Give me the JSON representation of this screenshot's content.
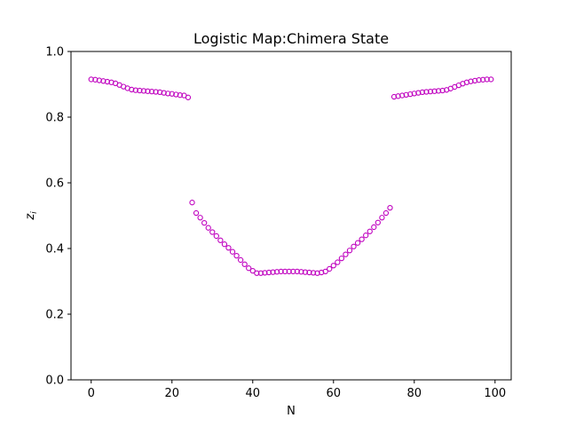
{
  "chart_data": {
    "type": "scatter",
    "title": "Logistic Map:Chimera State",
    "xlabel": "N",
    "ylabel_main": "z",
    "ylabel_sub": "i",
    "xlim": [
      -5,
      104
    ],
    "ylim": [
      0.0,
      1.0
    ],
    "xticks": [
      0,
      20,
      40,
      60,
      80,
      100
    ],
    "xtick_labels": [
      "0",
      "20",
      "40",
      "60",
      "80",
      "100"
    ],
    "yticks": [
      0.0,
      0.2,
      0.4,
      0.6,
      0.8,
      1.0
    ],
    "ytick_labels": [
      "0.0",
      "0.2",
      "0.4",
      "0.6",
      "0.8",
      "1.0"
    ],
    "grid": false,
    "marker": "hollow-circle",
    "color": "#bf00bf",
    "x": [
      0,
      1,
      2,
      3,
      4,
      5,
      6,
      7,
      8,
      9,
      10,
      11,
      12,
      13,
      14,
      15,
      16,
      17,
      18,
      19,
      20,
      21,
      22,
      23,
      24,
      25,
      26,
      27,
      28,
      29,
      30,
      31,
      32,
      33,
      34,
      35,
      36,
      37,
      38,
      39,
      40,
      41,
      42,
      43,
      44,
      45,
      46,
      47,
      48,
      49,
      50,
      51,
      52,
      53,
      54,
      55,
      56,
      57,
      58,
      59,
      60,
      61,
      62,
      63,
      64,
      65,
      66,
      67,
      68,
      69,
      70,
      71,
      72,
      73,
      74,
      75,
      76,
      77,
      78,
      79,
      80,
      81,
      82,
      83,
      84,
      85,
      86,
      87,
      88,
      89,
      90,
      91,
      92,
      93,
      94,
      95,
      96,
      97,
      98,
      99
    ],
    "y": [
      0.915,
      0.914,
      0.912,
      0.91,
      0.908,
      0.906,
      0.903,
      0.898,
      0.893,
      0.888,
      0.884,
      0.882,
      0.881,
      0.88,
      0.879,
      0.878,
      0.877,
      0.876,
      0.874,
      0.872,
      0.871,
      0.869,
      0.867,
      0.866,
      0.86,
      0.54,
      0.508,
      0.494,
      0.478,
      0.463,
      0.45,
      0.438,
      0.425,
      0.413,
      0.402,
      0.39,
      0.378,
      0.365,
      0.352,
      0.34,
      0.332,
      0.325,
      0.325,
      0.326,
      0.327,
      0.328,
      0.329,
      0.33,
      0.33,
      0.33,
      0.33,
      0.33,
      0.329,
      0.328,
      0.327,
      0.326,
      0.325,
      0.327,
      0.33,
      0.338,
      0.348,
      0.358,
      0.37,
      0.382,
      0.394,
      0.406,
      0.417,
      0.428,
      0.44,
      0.452,
      0.465,
      0.479,
      0.494,
      0.508,
      0.524,
      0.862,
      0.864,
      0.866,
      0.868,
      0.87,
      0.872,
      0.874,
      0.876,
      0.877,
      0.878,
      0.879,
      0.88,
      0.881,
      0.883,
      0.887,
      0.892,
      0.897,
      0.902,
      0.906,
      0.909,
      0.911,
      0.913,
      0.914,
      0.915,
      0.915
    ]
  }
}
